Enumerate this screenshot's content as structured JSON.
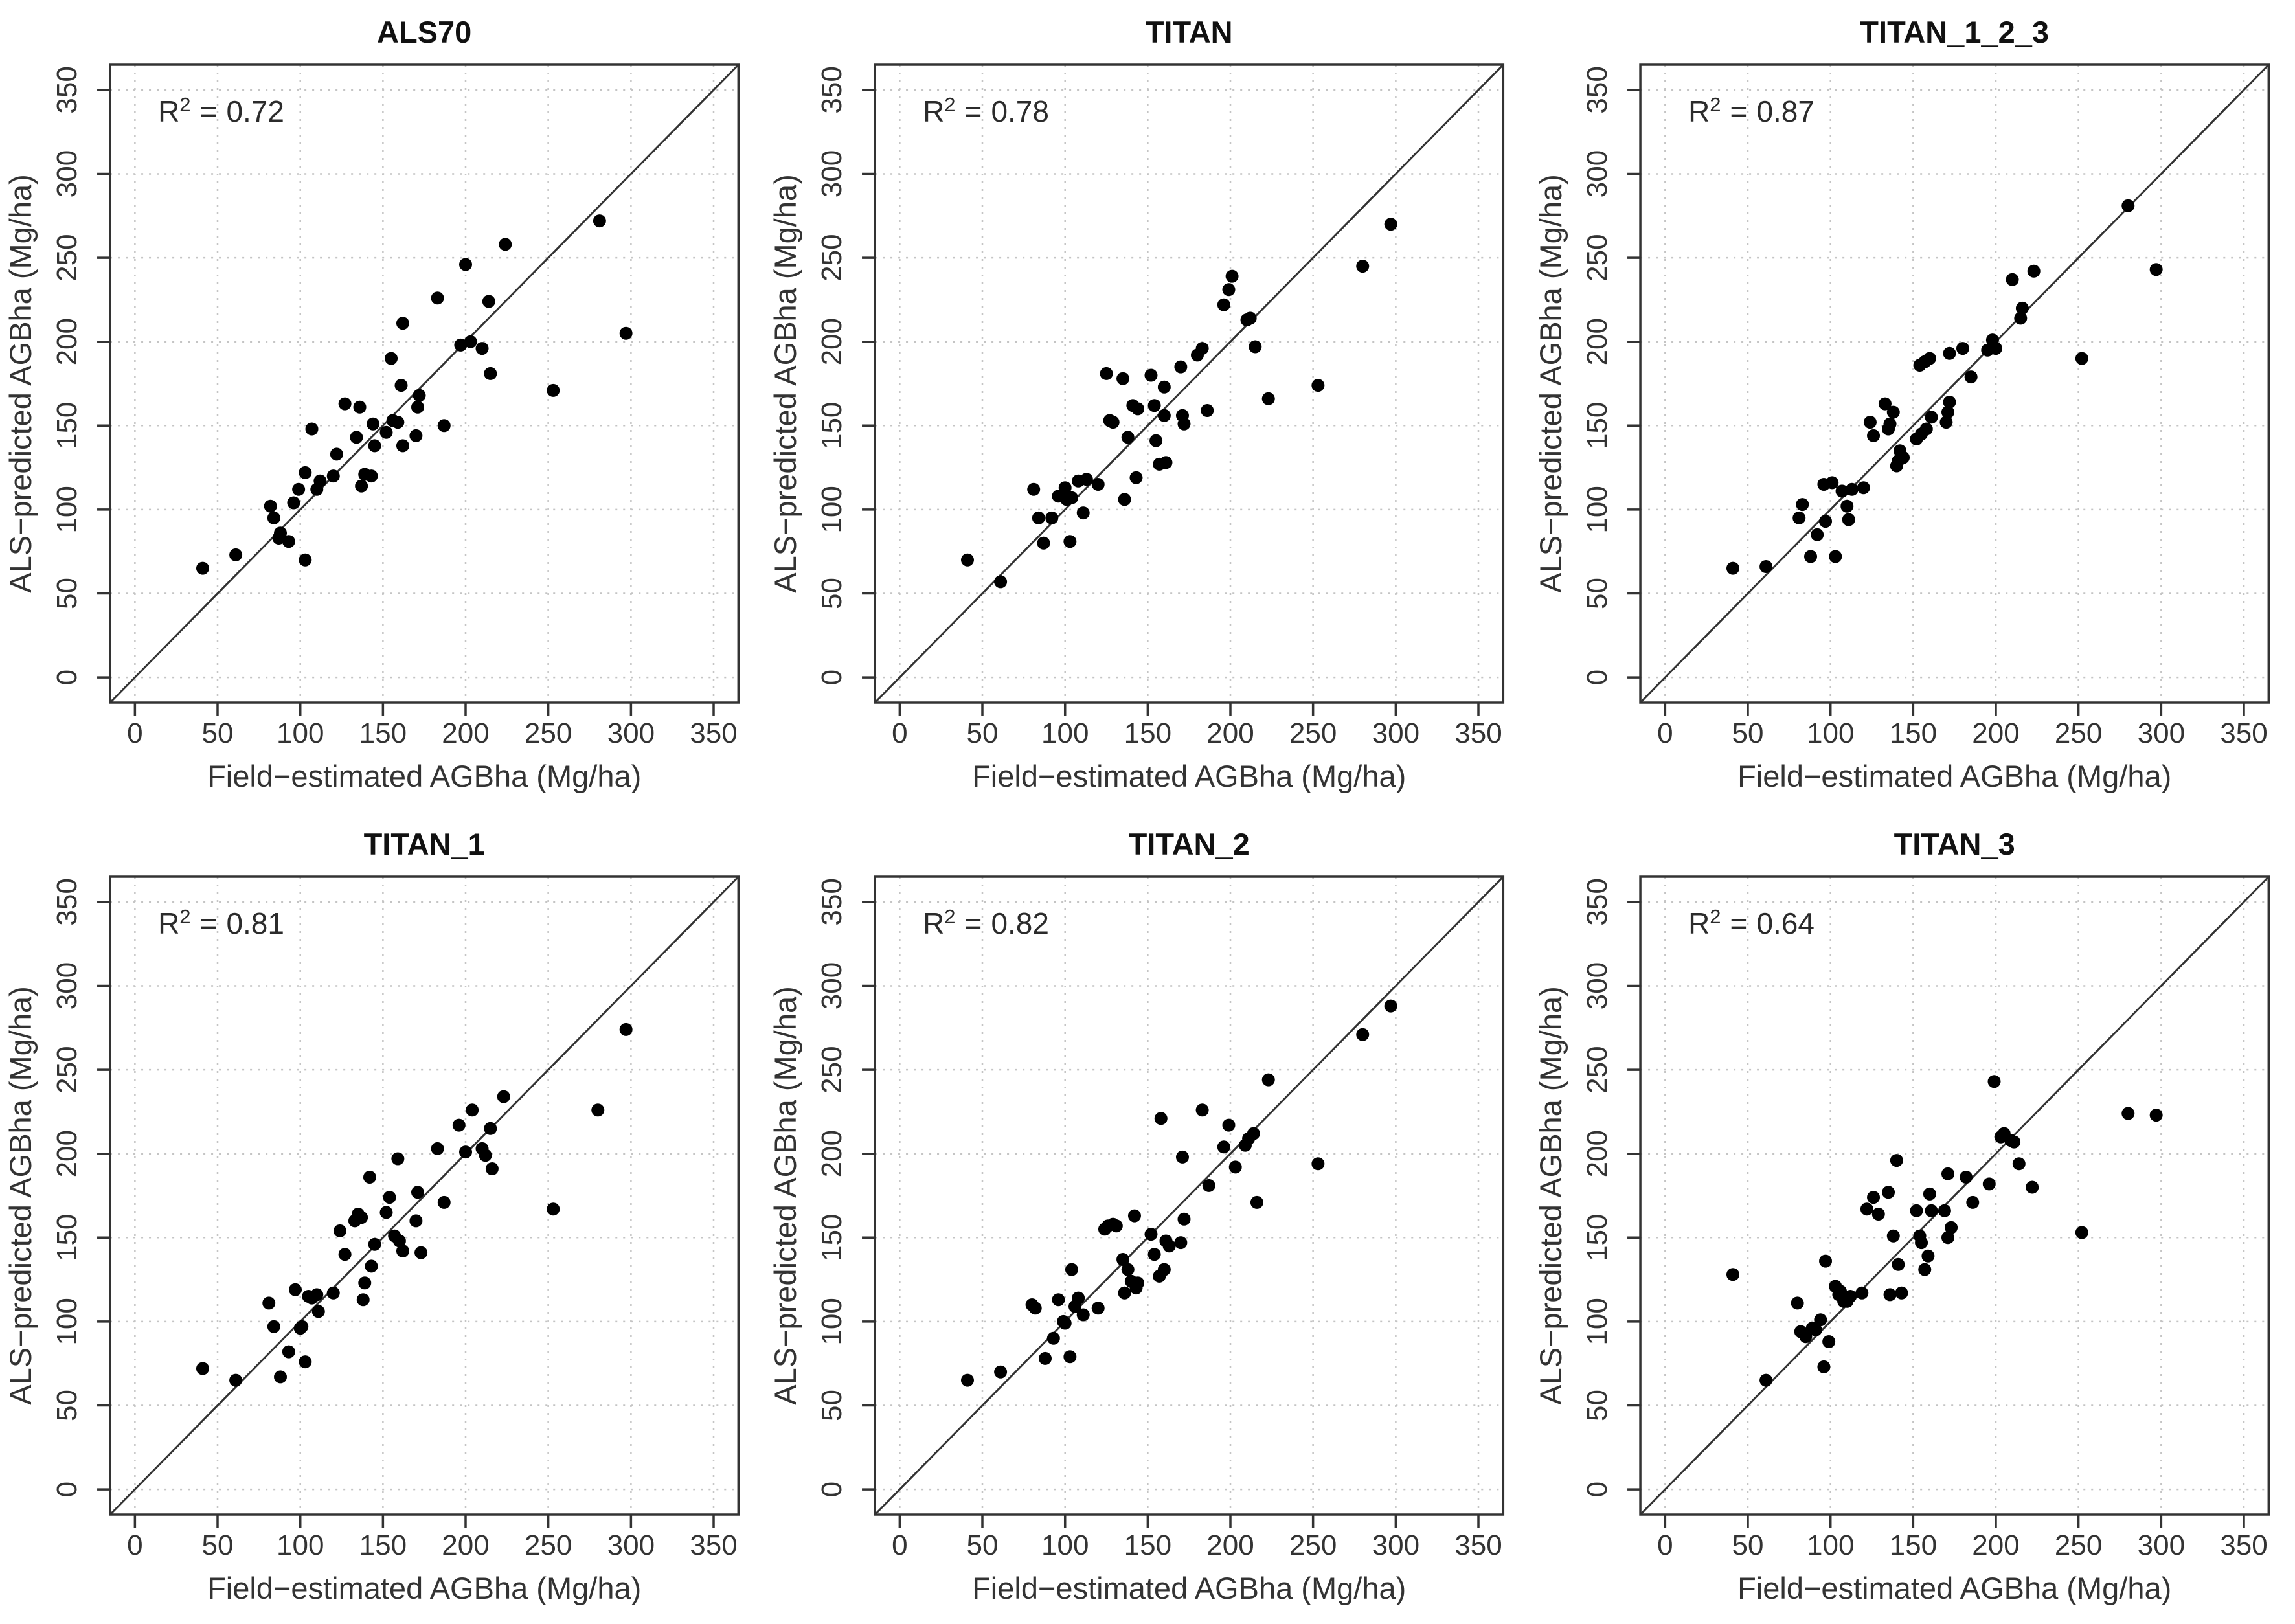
{
  "figure": {
    "r2_prefix": "R",
    "r2_sup": "2",
    "r2_equals": "=",
    "colors": {
      "point": "#000000",
      "axis": "#333333",
      "grid": "#c4c4c4",
      "text": "#333333",
      "title": "#111111"
    }
  },
  "chart_data": [
    {
      "type": "scatter",
      "title": "ALS70",
      "r2": "0.72",
      "xlabel": "Field−estimated AGBha (Mg/ha)",
      "ylabel": "ALS−predicted AGBha (Mg/ha)",
      "xlim": [
        -15,
        365
      ],
      "ylim": [
        -15,
        365
      ],
      "ticks": [
        0,
        50,
        100,
        150,
        200,
        250,
        300,
        350
      ],
      "grid": true,
      "identity_line": true,
      "legend": "none",
      "points": [
        [
          41,
          65
        ],
        [
          61,
          73
        ],
        [
          82,
          102
        ],
        [
          84,
          95
        ],
        [
          87,
          83
        ],
        [
          88,
          86
        ],
        [
          93,
          81
        ],
        [
          96,
          104
        ],
        [
          99,
          112
        ],
        [
          103,
          122
        ],
        [
          103,
          70
        ],
        [
          107,
          148
        ],
        [
          110,
          112
        ],
        [
          112,
          117
        ],
        [
          120,
          120
        ],
        [
          122,
          133
        ],
        [
          127,
          163
        ],
        [
          134,
          143
        ],
        [
          136,
          161
        ],
        [
          137,
          114
        ],
        [
          139,
          121
        ],
        [
          143,
          120
        ],
        [
          145,
          138
        ],
        [
          144,
          151
        ],
        [
          152,
          146
        ],
        [
          155,
          190
        ],
        [
          156,
          153
        ],
        [
          159,
          152
        ],
        [
          161,
          174
        ],
        [
          162,
          138
        ],
        [
          162,
          211
        ],
        [
          170,
          144
        ],
        [
          171,
          161
        ],
        [
          172,
          168
        ],
        [
          183,
          226
        ],
        [
          187,
          150
        ],
        [
          197,
          198
        ],
        [
          200,
          246
        ],
        [
          203,
          200
        ],
        [
          210,
          196
        ],
        [
          214,
          224
        ],
        [
          215,
          181
        ],
        [
          224,
          258
        ],
        [
          253,
          171
        ],
        [
          281,
          272
        ],
        [
          297,
          205
        ]
      ]
    },
    {
      "type": "scatter",
      "title": "TITAN",
      "r2": "0.78",
      "xlabel": "Field−estimated AGBha (Mg/ha)",
      "ylabel": "ALS−predicted AGBha (Mg/ha)",
      "xlim": [
        -15,
        365
      ],
      "ylim": [
        -15,
        365
      ],
      "ticks": [
        0,
        50,
        100,
        150,
        200,
        250,
        300,
        350
      ],
      "grid": true,
      "identity_line": true,
      "legend": "none",
      "points": [
        [
          41,
          70
        ],
        [
          61,
          57
        ],
        [
          81,
          112
        ],
        [
          84,
          95
        ],
        [
          87,
          80
        ],
        [
          92,
          95
        ],
        [
          96,
          108
        ],
        [
          100,
          113
        ],
        [
          101,
          106
        ],
        [
          103,
          81
        ],
        [
          104,
          107
        ],
        [
          108,
          117
        ],
        [
          111,
          98
        ],
        [
          113,
          118
        ],
        [
          120,
          115
        ],
        [
          125,
          181
        ],
        [
          127,
          153
        ],
        [
          129,
          152
        ],
        [
          135,
          178
        ],
        [
          136,
          106
        ],
        [
          138,
          143
        ],
        [
          141,
          162
        ],
        [
          143,
          119
        ],
        [
          144,
          160
        ],
        [
          152,
          180
        ],
        [
          154,
          162
        ],
        [
          155,
          141
        ],
        [
          157,
          127
        ],
        [
          160,
          173
        ],
        [
          160,
          156
        ],
        [
          161,
          128
        ],
        [
          170,
          185
        ],
        [
          171,
          156
        ],
        [
          172,
          151
        ],
        [
          180,
          192
        ],
        [
          183,
          196
        ],
        [
          186,
          159
        ],
        [
          196,
          222
        ],
        [
          199,
          231
        ],
        [
          201,
          239
        ],
        [
          210,
          213
        ],
        [
          212,
          214
        ],
        [
          215,
          197
        ],
        [
          223,
          166
        ],
        [
          253,
          174
        ],
        [
          280,
          245
        ],
        [
          297,
          270
        ]
      ]
    },
    {
      "type": "scatter",
      "title": "TITAN_1_2_3",
      "r2": "0.87",
      "xlabel": "Field−estimated AGBha (Mg/ha)",
      "ylabel": "ALS−predicted AGBha (Mg/ha)",
      "xlim": [
        -15,
        365
      ],
      "ylim": [
        -15,
        365
      ],
      "ticks": [
        0,
        50,
        100,
        150,
        200,
        250,
        300,
        350
      ],
      "grid": true,
      "identity_line": true,
      "legend": "none",
      "points": [
        [
          41,
          65
        ],
        [
          61,
          66
        ],
        [
          81,
          95
        ],
        [
          83,
          103
        ],
        [
          88,
          72
        ],
        [
          92,
          85
        ],
        [
          96,
          115
        ],
        [
          97,
          93
        ],
        [
          101,
          116
        ],
        [
          103,
          72
        ],
        [
          107,
          111
        ],
        [
          110,
          102
        ],
        [
          111,
          94
        ],
        [
          113,
          112
        ],
        [
          120,
          113
        ],
        [
          124,
          152
        ],
        [
          126,
          144
        ],
        [
          133,
          163
        ],
        [
          135,
          148
        ],
        [
          136,
          151
        ],
        [
          138,
          158
        ],
        [
          140,
          126
        ],
        [
          141,
          129
        ],
        [
          142,
          135
        ],
        [
          144,
          131
        ],
        [
          152,
          142
        ],
        [
          154,
          186
        ],
        [
          155,
          145
        ],
        [
          157,
          188
        ],
        [
          158,
          148
        ],
        [
          160,
          190
        ],
        [
          161,
          155
        ],
        [
          170,
          152
        ],
        [
          171,
          158
        ],
        [
          172,
          164
        ],
        [
          172,
          193
        ],
        [
          180,
          196
        ],
        [
          185,
          179
        ],
        [
          195,
          195
        ],
        [
          198,
          201
        ],
        [
          200,
          196
        ],
        [
          210,
          237
        ],
        [
          215,
          214
        ],
        [
          216,
          220
        ],
        [
          223,
          242
        ],
        [
          252,
          190
        ],
        [
          280,
          281
        ],
        [
          297,
          243
        ]
      ]
    },
    {
      "type": "scatter",
      "title": "TITAN_1",
      "r2": "0.81",
      "xlabel": "Field−estimated AGBha (Mg/ha)",
      "ylabel": "ALS−predicted AGBha (Mg/ha)",
      "xlim": [
        -15,
        365
      ],
      "ylim": [
        -15,
        365
      ],
      "ticks": [
        0,
        50,
        100,
        150,
        200,
        250,
        300,
        350
      ],
      "grid": true,
      "identity_line": true,
      "legend": "none",
      "points": [
        [
          41,
          72
        ],
        [
          61,
          65
        ],
        [
          81,
          111
        ],
        [
          84,
          97
        ],
        [
          88,
          67
        ],
        [
          93,
          82
        ],
        [
          97,
          119
        ],
        [
          100,
          96
        ],
        [
          101,
          97
        ],
        [
          103,
          76
        ],
        [
          105,
          115
        ],
        [
          107,
          114
        ],
        [
          110,
          116
        ],
        [
          111,
          106
        ],
        [
          120,
          117
        ],
        [
          124,
          154
        ],
        [
          127,
          140
        ],
        [
          133,
          160
        ],
        [
          135,
          164
        ],
        [
          137,
          162
        ],
        [
          138,
          113
        ],
        [
          139,
          123
        ],
        [
          142,
          186
        ],
        [
          143,
          133
        ],
        [
          145,
          146
        ],
        [
          152,
          165
        ],
        [
          154,
          174
        ],
        [
          157,
          151
        ],
        [
          159,
          197
        ],
        [
          160,
          148
        ],
        [
          162,
          142
        ],
        [
          170,
          160
        ],
        [
          171,
          177
        ],
        [
          173,
          141
        ],
        [
          183,
          203
        ],
        [
          187,
          171
        ],
        [
          196,
          217
        ],
        [
          200,
          201
        ],
        [
          204,
          226
        ],
        [
          210,
          203
        ],
        [
          212,
          199
        ],
        [
          215,
          215
        ],
        [
          216,
          191
        ],
        [
          223,
          234
        ],
        [
          253,
          167
        ],
        [
          280,
          226
        ],
        [
          297,
          274
        ]
      ]
    },
    {
      "type": "scatter",
      "title": "TITAN_2",
      "r2": "0.82",
      "xlabel": "Field−estimated AGBha (Mg/ha)",
      "ylabel": "ALS−predicted AGBha (Mg/ha)",
      "xlim": [
        -15,
        365
      ],
      "ylim": [
        -15,
        365
      ],
      "ticks": [
        0,
        50,
        100,
        150,
        200,
        250,
        300,
        350
      ],
      "grid": true,
      "identity_line": true,
      "legend": "none",
      "points": [
        [
          41,
          65
        ],
        [
          61,
          70
        ],
        [
          80,
          110
        ],
        [
          82,
          108
        ],
        [
          88,
          78
        ],
        [
          93,
          90
        ],
        [
          96,
          113
        ],
        [
          99,
          100
        ],
        [
          100,
          99
        ],
        [
          103,
          79
        ],
        [
          104,
          131
        ],
        [
          106,
          109
        ],
        [
          108,
          114
        ],
        [
          111,
          104
        ],
        [
          120,
          108
        ],
        [
          124,
          155
        ],
        [
          126,
          157
        ],
        [
          129,
          158
        ],
        [
          131,
          157
        ],
        [
          135,
          137
        ],
        [
          136,
          117
        ],
        [
          138,
          131
        ],
        [
          140,
          124
        ],
        [
          142,
          163
        ],
        [
          143,
          120
        ],
        [
          144,
          123
        ],
        [
          152,
          152
        ],
        [
          154,
          140
        ],
        [
          157,
          127
        ],
        [
          158,
          221
        ],
        [
          160,
          131
        ],
        [
          161,
          148
        ],
        [
          163,
          145
        ],
        [
          170,
          147
        ],
        [
          171,
          198
        ],
        [
          172,
          161
        ],
        [
          183,
          226
        ],
        [
          187,
          181
        ],
        [
          196,
          204
        ],
        [
          199,
          217
        ],
        [
          203,
          192
        ],
        [
          209,
          205
        ],
        [
          211,
          209
        ],
        [
          214,
          212
        ],
        [
          216,
          171
        ],
        [
          223,
          244
        ],
        [
          253,
          194
        ],
        [
          280,
          271
        ],
        [
          297,
          288
        ]
      ]
    },
    {
      "type": "scatter",
      "title": "TITAN_3",
      "r2": "0.64",
      "xlabel": "Field−estimated AGBha (Mg/ha)",
      "ylabel": "ALS−predicted AGBha (Mg/ha)",
      "xlim": [
        -15,
        365
      ],
      "ylim": [
        -15,
        365
      ],
      "ticks": [
        0,
        50,
        100,
        150,
        200,
        250,
        300,
        350
      ],
      "grid": true,
      "identity_line": true,
      "legend": "none",
      "points": [
        [
          41,
          128
        ],
        [
          61,
          65
        ],
        [
          80,
          111
        ],
        [
          82,
          94
        ],
        [
          85,
          91
        ],
        [
          89,
          96
        ],
        [
          91,
          95
        ],
        [
          94,
          101
        ],
        [
          96,
          73
        ],
        [
          97,
          136
        ],
        [
          99,
          88
        ],
        [
          103,
          121
        ],
        [
          105,
          116
        ],
        [
          106,
          118
        ],
        [
          108,
          112
        ],
        [
          110,
          112
        ],
        [
          112,
          115
        ],
        [
          119,
          117
        ],
        [
          122,
          167
        ],
        [
          126,
          174
        ],
        [
          129,
          164
        ],
        [
          135,
          177
        ],
        [
          136,
          116
        ],
        [
          138,
          151
        ],
        [
          140,
          196
        ],
        [
          141,
          134
        ],
        [
          143,
          117
        ],
        [
          152,
          166
        ],
        [
          154,
          151
        ],
        [
          155,
          147
        ],
        [
          157,
          131
        ],
        [
          159,
          139
        ],
        [
          160,
          176
        ],
        [
          161,
          166
        ],
        [
          169,
          166
        ],
        [
          171,
          188
        ],
        [
          171,
          150
        ],
        [
          173,
          156
        ],
        [
          182,
          186
        ],
        [
          186,
          171
        ],
        [
          196,
          182
        ],
        [
          199,
          243
        ],
        [
          203,
          210
        ],
        [
          205,
          212
        ],
        [
          209,
          208
        ],
        [
          211,
          207
        ],
        [
          214,
          194
        ],
        [
          222,
          180
        ],
        [
          252,
          153
        ],
        [
          280,
          224
        ],
        [
          297,
          223
        ]
      ]
    }
  ]
}
